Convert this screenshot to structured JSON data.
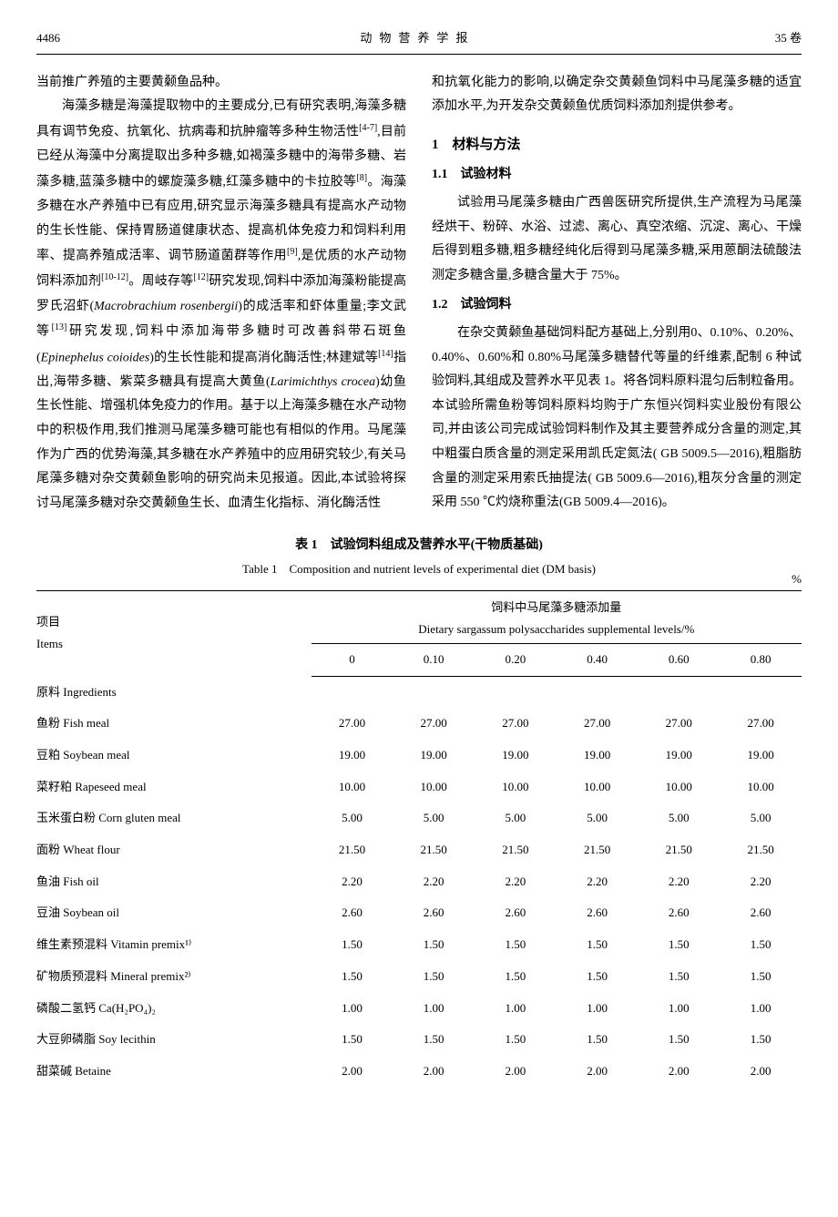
{
  "header": {
    "page_number": "4486",
    "journal_title": "动物营养学报",
    "volume": "35 卷"
  },
  "left_column": {
    "p1": "当前推广养殖的主要黄颡鱼品种。",
    "p2_a": "海藻多糖是海藻提取物中的主要成分,已有研究表明,海藻多糖具有调节免疫、抗氧化、抗病毒和抗肿瘤等多种生物活性",
    "sup1": "[4-7]",
    "p2_b": ",目前已经从海藻中分离提取出多种多糖,如褐藻多糖中的海带多糖、岩藻多糖,蓝藻多糖中的螺旋藻多糖,红藻多糖中的卡拉胶等",
    "sup2": "[8]",
    "p2_c": "。海藻多糖在水产养殖中已有应用,研究显示海藻多糖具有提高水产动物的生长性能、保持胃肠道健康状态、提高机体免疫力和饲料利用率、提高养殖成活率、调节肠道菌群等作用",
    "sup3": "[9]",
    "p2_d": ",是优质的水产动物饲料添加剂",
    "sup4": "[10-12]",
    "p2_e": "。周岐存等",
    "sup5": "[12]",
    "p2_f": "研究发现,饲料中添加海藻粉能提高罗氏沼虾(",
    "italic1": "Macrobrachium rosenbergii",
    "p2_g": ")的成活率和虾体重量;李文武等",
    "sup6": "[13]",
    "p2_h": "研究发现,饲料中添加海带多糖时可改善斜带石斑鱼(",
    "italic2": "Epinephelus coioides",
    "p2_i": ")的生长性能和提高消化酶活性;林建斌等",
    "sup7": "[14]",
    "p2_j": "指出,海带多糖、紫菜多糖具有提高大黄鱼(",
    "italic3": "Larimichthys crocea",
    "p2_k": ")幼鱼生长性能、增强机体免疫力的作用。基于以上海藻多糖在水产动物中的积极作用,我们推测马尾藻多糖可能也有相似的作用。马尾藻作为广西的优势海藻,其多糖在水产养殖中的应用研究较少,有关马尾藻多糖对杂交黄颡鱼影响的研究尚未见报道。因此,本试验将探讨马尾藻多糖对杂交黄颡鱼生长、血清生化指标、消化酶活性"
  },
  "right_column": {
    "p1": "和抗氧化能力的影响,以确定杂交黄颡鱼饲料中马尾藻多糖的适宜添加水平,为开发杂交黄颡鱼优质饲料添加剂提供参考。",
    "h1": "1　材料与方法",
    "h1_1": "1.1　试验材料",
    "p2": "试验用马尾藻多糖由广西兽医研究所提供,生产流程为马尾藻经烘干、粉碎、水浴、过滤、离心、真空浓缩、沉淀、离心、干燥后得到粗多糖,粗多糖经纯化后得到马尾藻多糖,采用蒽酮法硫酸法测定多糖含量,多糖含量大于 75%。",
    "h1_2": "1.2　试验饲料",
    "p3": "在杂交黄颡鱼基础饲料配方基础上,分别用0、0.10%、0.20%、0.40%、0.60%和 0.80%马尾藻多糖替代等量的纤维素,配制 6 种试验饲料,其组成及营养水平见表 1。将各饲料原料混匀后制粒备用。本试验所需鱼粉等饲料原料均购于广东恒兴饲料实业股份有限公司,并由该公司完成试验饲料制作及其主要营养成分含量的测定,其中粗蛋白质含量的测定采用凯氏定氮法( GB 5009.5—2016),粗脂肪含量的测定采用索氏抽提法( GB 5009.6—2016),粗灰分含量的测定采用 550 ℃灼烧称重法(GB 5009.4—2016)。"
  },
  "table": {
    "caption_zh": "表 1　试验饲料组成及营养水平(干物质基础)",
    "caption_en": "Table 1　Composition and nutrient levels of experimental diet (DM basis)",
    "unit": "%",
    "items_header_zh": "项目",
    "items_header_en": "Items",
    "group_header_zh": "饲料中马尾藻多糖添加量",
    "group_header_en": "Dietary sargassum polysaccharides supplemental levels/%",
    "columns": [
      "0",
      "0.10",
      "0.20",
      "0.40",
      "0.60",
      "0.80"
    ],
    "section_label": "原料 Ingredients",
    "rows": [
      {
        "label": "鱼粉 Fish meal",
        "vals": [
          "27.00",
          "27.00",
          "27.00",
          "27.00",
          "27.00",
          "27.00"
        ]
      },
      {
        "label": "豆粕 Soybean meal",
        "vals": [
          "19.00",
          "19.00",
          "19.00",
          "19.00",
          "19.00",
          "19.00"
        ]
      },
      {
        "label": "菜籽粕 Rapeseed meal",
        "vals": [
          "10.00",
          "10.00",
          "10.00",
          "10.00",
          "10.00",
          "10.00"
        ]
      },
      {
        "label": "玉米蛋白粉 Corn gluten meal",
        "vals": [
          "5.00",
          "5.00",
          "5.00",
          "5.00",
          "5.00",
          "5.00"
        ]
      },
      {
        "label": "面粉 Wheat flour",
        "vals": [
          "21.50",
          "21.50",
          "21.50",
          "21.50",
          "21.50",
          "21.50"
        ]
      },
      {
        "label": "鱼油 Fish oil",
        "vals": [
          "2.20",
          "2.20",
          "2.20",
          "2.20",
          "2.20",
          "2.20"
        ]
      },
      {
        "label": "豆油 Soybean oil",
        "vals": [
          "2.60",
          "2.60",
          "2.60",
          "2.60",
          "2.60",
          "2.60"
        ]
      },
      {
        "label": "维生素预混料 Vitamin premix¹⁾",
        "vals": [
          "1.50",
          "1.50",
          "1.50",
          "1.50",
          "1.50",
          "1.50"
        ]
      },
      {
        "label": "矿物质预混料 Mineral premix²⁾",
        "vals": [
          "1.50",
          "1.50",
          "1.50",
          "1.50",
          "1.50",
          "1.50"
        ]
      },
      {
        "label": "磷酸二氢钙 Ca(H₂PO₄)₂",
        "vals": [
          "1.00",
          "1.00",
          "1.00",
          "1.00",
          "1.00",
          "1.00"
        ]
      },
      {
        "label": "大豆卵磷脂 Soy lecithin",
        "vals": [
          "1.50",
          "1.50",
          "1.50",
          "1.50",
          "1.50",
          "1.50"
        ]
      },
      {
        "label": "甜菜碱 Betaine",
        "vals": [
          "2.00",
          "2.00",
          "2.00",
          "2.00",
          "2.00",
          "2.00"
        ]
      }
    ]
  },
  "colors": {
    "text": "#000000",
    "background": "#ffffff",
    "rule": "#000000"
  }
}
